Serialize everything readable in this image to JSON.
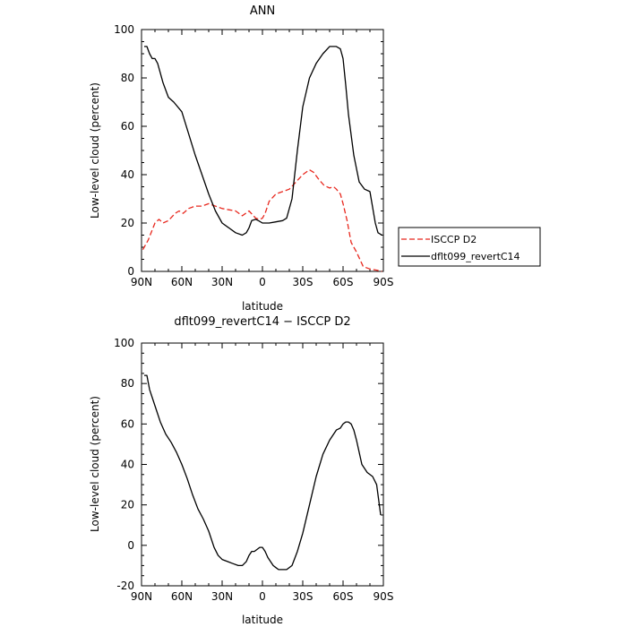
{
  "chart_data": [
    {
      "type": "line",
      "title": "ANN",
      "xlabel": "latitude",
      "ylabel": "Low-level cloud (percent)",
      "xlim": [
        90,
        -90
      ],
      "ylim": [
        0,
        100
      ],
      "x_ticks": [
        90,
        60,
        30,
        0,
        -30,
        -60,
        -90
      ],
      "x_tick_labels": [
        "90N",
        "60N",
        "30N",
        "0",
        "30S",
        "60S",
        "90S"
      ],
      "y_ticks": [
        0,
        20,
        40,
        60,
        80,
        100
      ],
      "legend": {
        "placement": "right",
        "entries": [
          "ISCCP D2",
          "dflt099_revertC14"
        ]
      },
      "series": [
        {
          "name": "ISCCP D2",
          "color": "#e8281e",
          "dash": "dashed",
          "x": [
            89,
            85,
            80,
            77,
            74,
            70,
            65,
            62,
            59,
            55,
            50,
            45,
            40,
            35,
            30,
            25,
            20,
            15,
            10,
            5,
            2,
            0,
            -2,
            -5,
            -10,
            -15,
            -20,
            -25,
            -30,
            -35,
            -38,
            -42,
            -46,
            -50,
            -53,
            -55,
            -58,
            -60,
            -63,
            -66,
            -70,
            -75,
            -80,
            -85,
            -89
          ],
          "y": [
            9,
            13,
            20,
            21.5,
            20,
            21,
            24,
            25,
            24,
            26,
            27,
            27,
            28,
            27,
            26,
            25.5,
            25,
            23,
            25,
            22,
            21.5,
            22,
            24,
            29,
            32,
            33,
            34,
            37,
            40,
            42,
            41,
            38,
            35.5,
            34.5,
            35,
            34,
            32,
            28,
            21,
            12,
            8,
            2,
            1,
            0.5,
            0
          ]
        },
        {
          "name": "dflt099_revertC14",
          "color": "#000000",
          "dash": "solid",
          "x": [
            88,
            86,
            84,
            82,
            80,
            78,
            76,
            74,
            72,
            70,
            66,
            60,
            55,
            50,
            45,
            40,
            35,
            30,
            25,
            20,
            15,
            12,
            10,
            8,
            5,
            3,
            0,
            -3,
            -5,
            -10,
            -15,
            -18,
            -22,
            -26,
            -30,
            -35,
            -40,
            -45,
            -50,
            -55,
            -58,
            -60,
            -62,
            -64,
            -68,
            -72,
            -76,
            -80,
            -84,
            -86,
            -89
          ],
          "y": [
            93,
            93,
            90,
            88,
            88,
            86,
            82,
            78,
            75,
            72,
            70,
            66,
            57,
            48,
            40,
            32,
            25,
            20,
            18,
            16,
            15,
            16,
            18,
            21,
            21.5,
            21,
            20,
            20,
            20,
            20.5,
            21,
            22,
            30,
            50,
            68,
            80,
            86,
            90,
            93,
            93,
            92,
            88,
            77,
            65,
            48,
            37,
            34,
            33,
            20,
            16,
            15
          ]
        }
      ]
    },
    {
      "type": "line",
      "title": "dflt099_revertC14 − ISCCP D2",
      "xlabel": "latitude",
      "ylabel": "Low-level cloud (percent)",
      "xlim": [
        90,
        -90
      ],
      "ylim": [
        -20,
        100
      ],
      "x_ticks": [
        90,
        60,
        30,
        0,
        -30,
        -60,
        -90
      ],
      "x_tick_labels": [
        "90N",
        "60N",
        "30N",
        "0",
        "30S",
        "60S",
        "90S"
      ],
      "y_ticks": [
        -20,
        0,
        20,
        40,
        60,
        80,
        100
      ],
      "series": [
        {
          "name": "dflt099_revertC14 − ISCCP D2",
          "color": "#000000",
          "dash": "solid",
          "x": [
            88,
            86,
            84,
            80,
            76,
            72,
            68,
            64,
            60,
            56,
            52,
            48,
            44,
            40,
            36,
            33,
            30,
            26,
            22,
            18,
            15,
            12,
            10,
            8,
            6,
            4,
            2,
            0,
            -2,
            -4,
            -6,
            -8,
            -10,
            -12,
            -15,
            -18,
            -22,
            -26,
            -30,
            -35,
            -40,
            -45,
            -50,
            -55,
            -58,
            -60,
            -62,
            -64,
            -66,
            -68,
            -70,
            -74,
            -78,
            -82,
            -85,
            -88
          ],
          "y": [
            84,
            84,
            77,
            69,
            61,
            55,
            51,
            46,
            40,
            33,
            25,
            18,
            13,
            7,
            -1,
            -5,
            -7,
            -8,
            -9,
            -10,
            -10,
            -8,
            -5,
            -3,
            -3,
            -2,
            -1,
            -1,
            -3,
            -6,
            -8,
            -10,
            -11,
            -12,
            -12,
            -12,
            -10,
            -3,
            6,
            20,
            34,
            45,
            52,
            57,
            58,
            60,
            61,
            61,
            60,
            57,
            52,
            40,
            36,
            34,
            30,
            15
          ]
        }
      ]
    }
  ]
}
